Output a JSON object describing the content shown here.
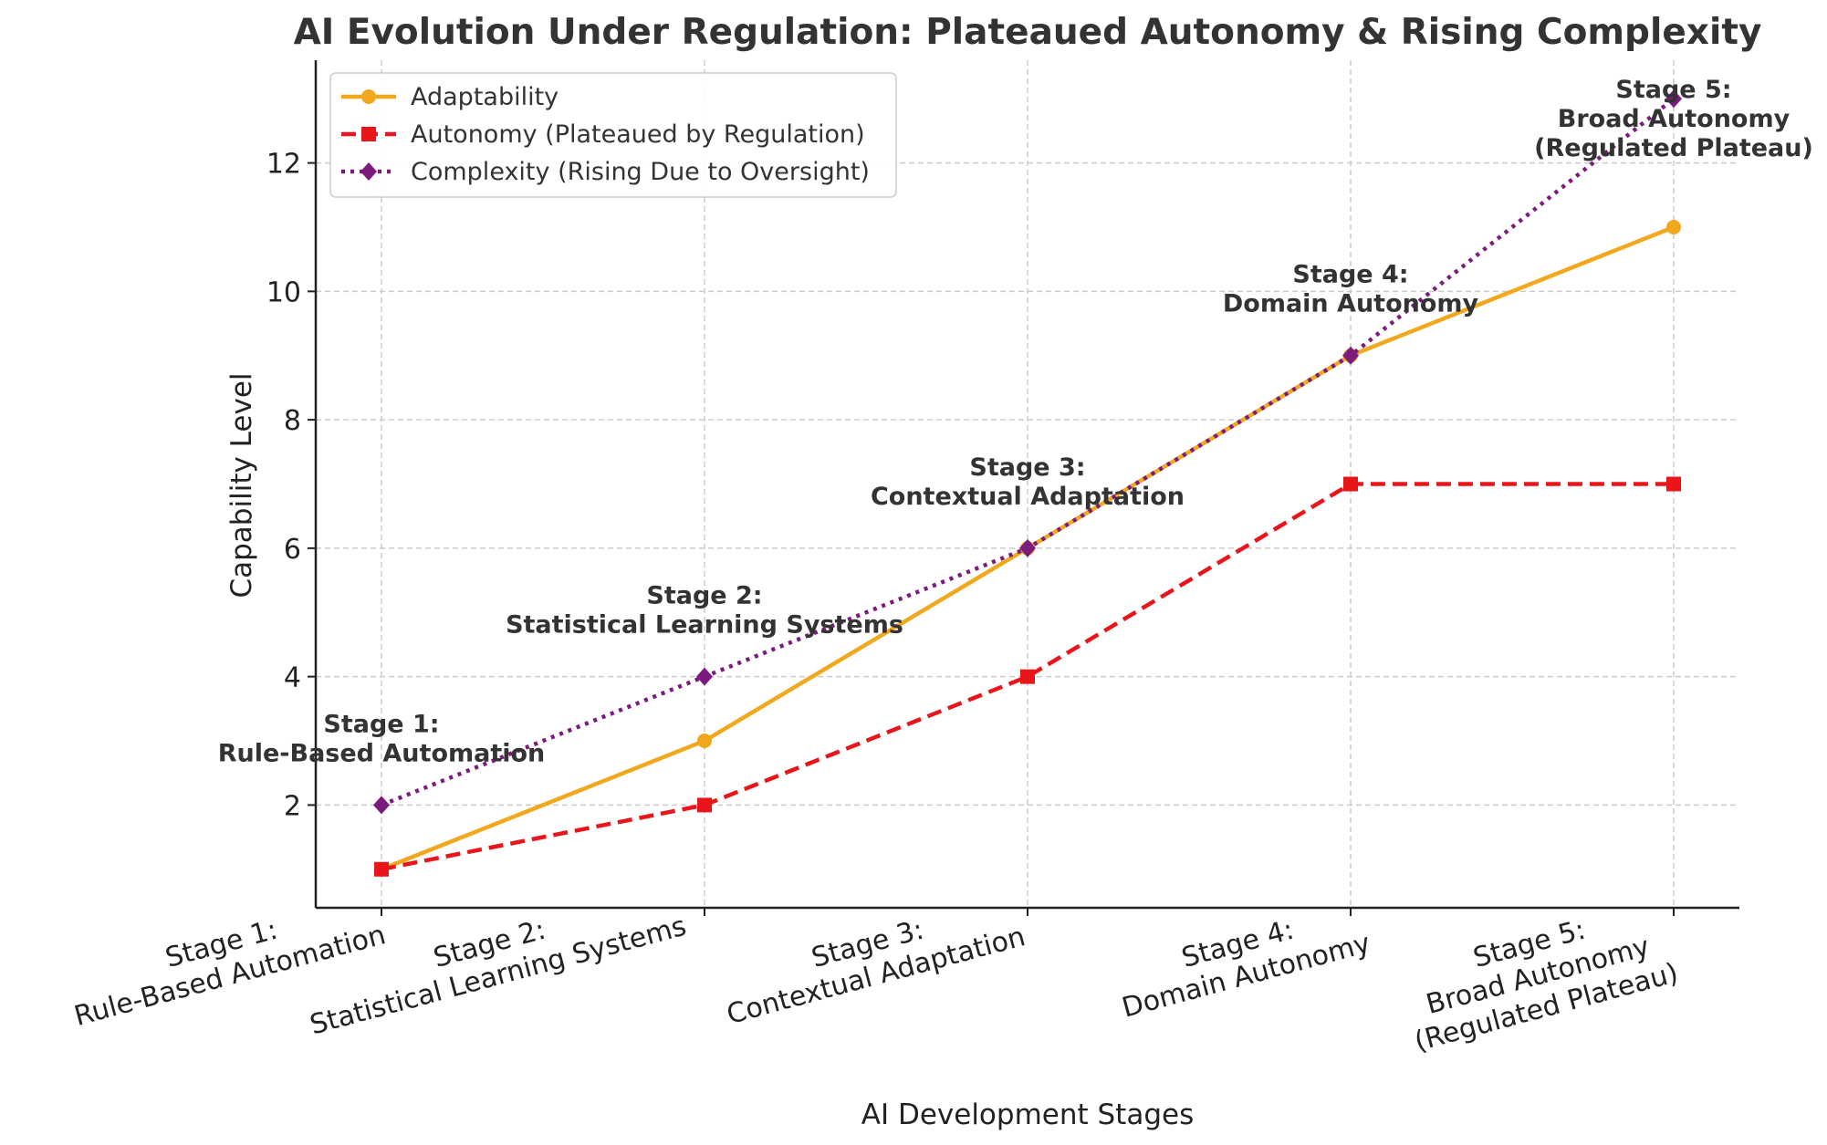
{
  "chart_data": {
    "type": "line",
    "title": "AI Evolution Under Regulation: Plateaued Autonomy & Rising Complexity",
    "xlabel": "AI Development Stages",
    "ylabel": "Capability Level",
    "categories": [
      [
        "Stage 1:",
        "Rule-Based Automation"
      ],
      [
        "Stage 2:",
        "Statistical Learning Systems"
      ],
      [
        "Stage 3:",
        "Contextual Adaptation"
      ],
      [
        "Stage 4:",
        "Domain Autonomy"
      ],
      [
        "Stage 5:",
        "Broad Autonomy",
        "(Regulated Plateau)"
      ]
    ],
    "ylim": [
      0.4,
      13.6
    ],
    "yticks": [
      2,
      4,
      6,
      8,
      10,
      12
    ],
    "grid": true,
    "legend_position": "top-left",
    "series": [
      {
        "name": "Adaptability",
        "values": [
          1,
          3,
          6,
          9,
          11
        ],
        "color": "#f2a81d",
        "line_style": "solid",
        "marker": "circle"
      },
      {
        "name": "Autonomy (Plateaued by Regulation)",
        "values": [
          1,
          2,
          4,
          7,
          7
        ],
        "color": "#e8161b",
        "line_style": "dashed",
        "marker": "square"
      },
      {
        "name": "Complexity (Rising Due to Oversight)",
        "values": [
          2,
          4,
          6,
          9,
          13
        ],
        "color": "#7b1b7e",
        "line_style": "dotted",
        "marker": "diamond"
      }
    ],
    "annotations": [
      {
        "lines": [
          "Stage 1:",
          "Rule-Based Automation"
        ],
        "x": 0,
        "y": 2
      },
      {
        "lines": [
          "Stage 2:",
          "Statistical Learning Systems"
        ],
        "x": 1,
        "y": 4
      },
      {
        "lines": [
          "Stage 3:",
          "Contextual Adaptation"
        ],
        "x": 2,
        "y": 6
      },
      {
        "lines": [
          "Stage 4:",
          "Domain Autonomy"
        ],
        "x": 3,
        "y": 9
      },
      {
        "lines": [
          "Stage 5:",
          "Broad Autonomy",
          "(Regulated Plateau)"
        ],
        "x": 4,
        "y": 11
      }
    ]
  }
}
